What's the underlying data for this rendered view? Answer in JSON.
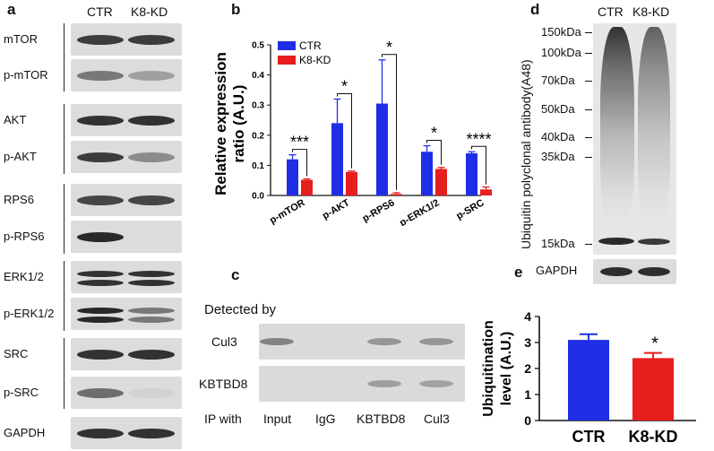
{
  "panel_a": {
    "letter": "a",
    "columns": [
      "CTR",
      "K8-KD"
    ],
    "rows": [
      {
        "label": "mTOR",
        "ctr": 0.85,
        "kd": 0.85
      },
      {
        "label": "p-mTOR",
        "ctr": 0.55,
        "kd": 0.35
      },
      {
        "label": "AKT",
        "ctr": 0.9,
        "kd": 0.9
      },
      {
        "label": "p-AKT",
        "ctr": 0.85,
        "kd": 0.45
      },
      {
        "label": "RPS6",
        "ctr": 0.8,
        "kd": 0.8
      },
      {
        "label": "p-RPS6",
        "ctr": 0.95,
        "kd": 0.05
      },
      {
        "label": "ERK1/2",
        "ctr": 0.9,
        "kd": 0.9
      },
      {
        "label": "p-ERK1/2",
        "ctr": 0.95,
        "kd": 0.55
      },
      {
        "label": "SRC",
        "ctr": 0.9,
        "kd": 0.9
      },
      {
        "label": "p-SRC",
        "ctr": 0.6,
        "kd": 0.1
      },
      {
        "label": "GAPDH",
        "ctr": 0.9,
        "kd": 0.9
      }
    ]
  },
  "panel_b": {
    "letter": "b",
    "chart_data": {
      "type": "bar",
      "categories": [
        "p-mTOR",
        "p-AKT",
        "p-RPS6",
        "p-ERK1/2",
        "p-SRC"
      ],
      "series": [
        {
          "name": "CTR",
          "color": "#1f2ee6",
          "values": [
            0.12,
            0.24,
            0.305,
            0.145,
            0.14
          ],
          "errors": [
            0.015,
            0.08,
            0.145,
            0.02,
            0.005
          ]
        },
        {
          "name": "K8-KD",
          "color": "#e61e1e",
          "values": [
            0.052,
            0.078,
            0.005,
            0.088,
            0.02
          ],
          "errors": [
            0.003,
            0.003,
            0.004,
            0.005,
            0.008
          ]
        }
      ],
      "significance": [
        "***",
        "*",
        "*",
        "*",
        "****"
      ],
      "ylabel": "Relative  expression ratio (A.U.)",
      "ylim": [
        0,
        0.5
      ],
      "yticks": [
        "0.0",
        "0.1",
        "0.2",
        "0.3",
        "0.4",
        "0.5"
      ],
      "legend": "top-left"
    }
  },
  "panel_c": {
    "letter": "c",
    "detected_by": "Detected by",
    "rows": [
      {
        "label": "Cul3",
        "intensity": [
          0.45,
          0.0,
          0.35,
          0.35
        ]
      },
      {
        "label": "KBTBD8",
        "intensity": [
          0.0,
          0.0,
          0.3,
          0.28
        ]
      }
    ],
    "ip_with": "IP with",
    "lanes": [
      "Input",
      "IgG",
      "KBTBD8",
      "Cul3"
    ]
  },
  "panel_d": {
    "letter": "d",
    "columns": [
      "CTR",
      "K8-KD"
    ],
    "ylabel": "Ubiquitin polyclonal antibody(A48)",
    "markers": [
      "150kDa",
      "100kDa",
      "70kDa",
      "50kDa",
      "40kDa",
      "35kDa",
      "15kDa"
    ],
    "loading": "GAPDH"
  },
  "panel_e": {
    "letter": "e",
    "chart_data": {
      "type": "bar",
      "categories": [
        "CTR",
        "K8-KD"
      ],
      "values": [
        3.1,
        2.4
      ],
      "errors": [
        0.22,
        0.2
      ],
      "colors": [
        "#1f2ee6",
        "#e61e1e"
      ],
      "significance": [
        "",
        "*"
      ],
      "ylabel": "Ubiquitination level (A.U.)",
      "ylim": [
        0,
        4
      ],
      "yticks": [
        "0",
        "1",
        "2",
        "3",
        "4"
      ]
    }
  }
}
